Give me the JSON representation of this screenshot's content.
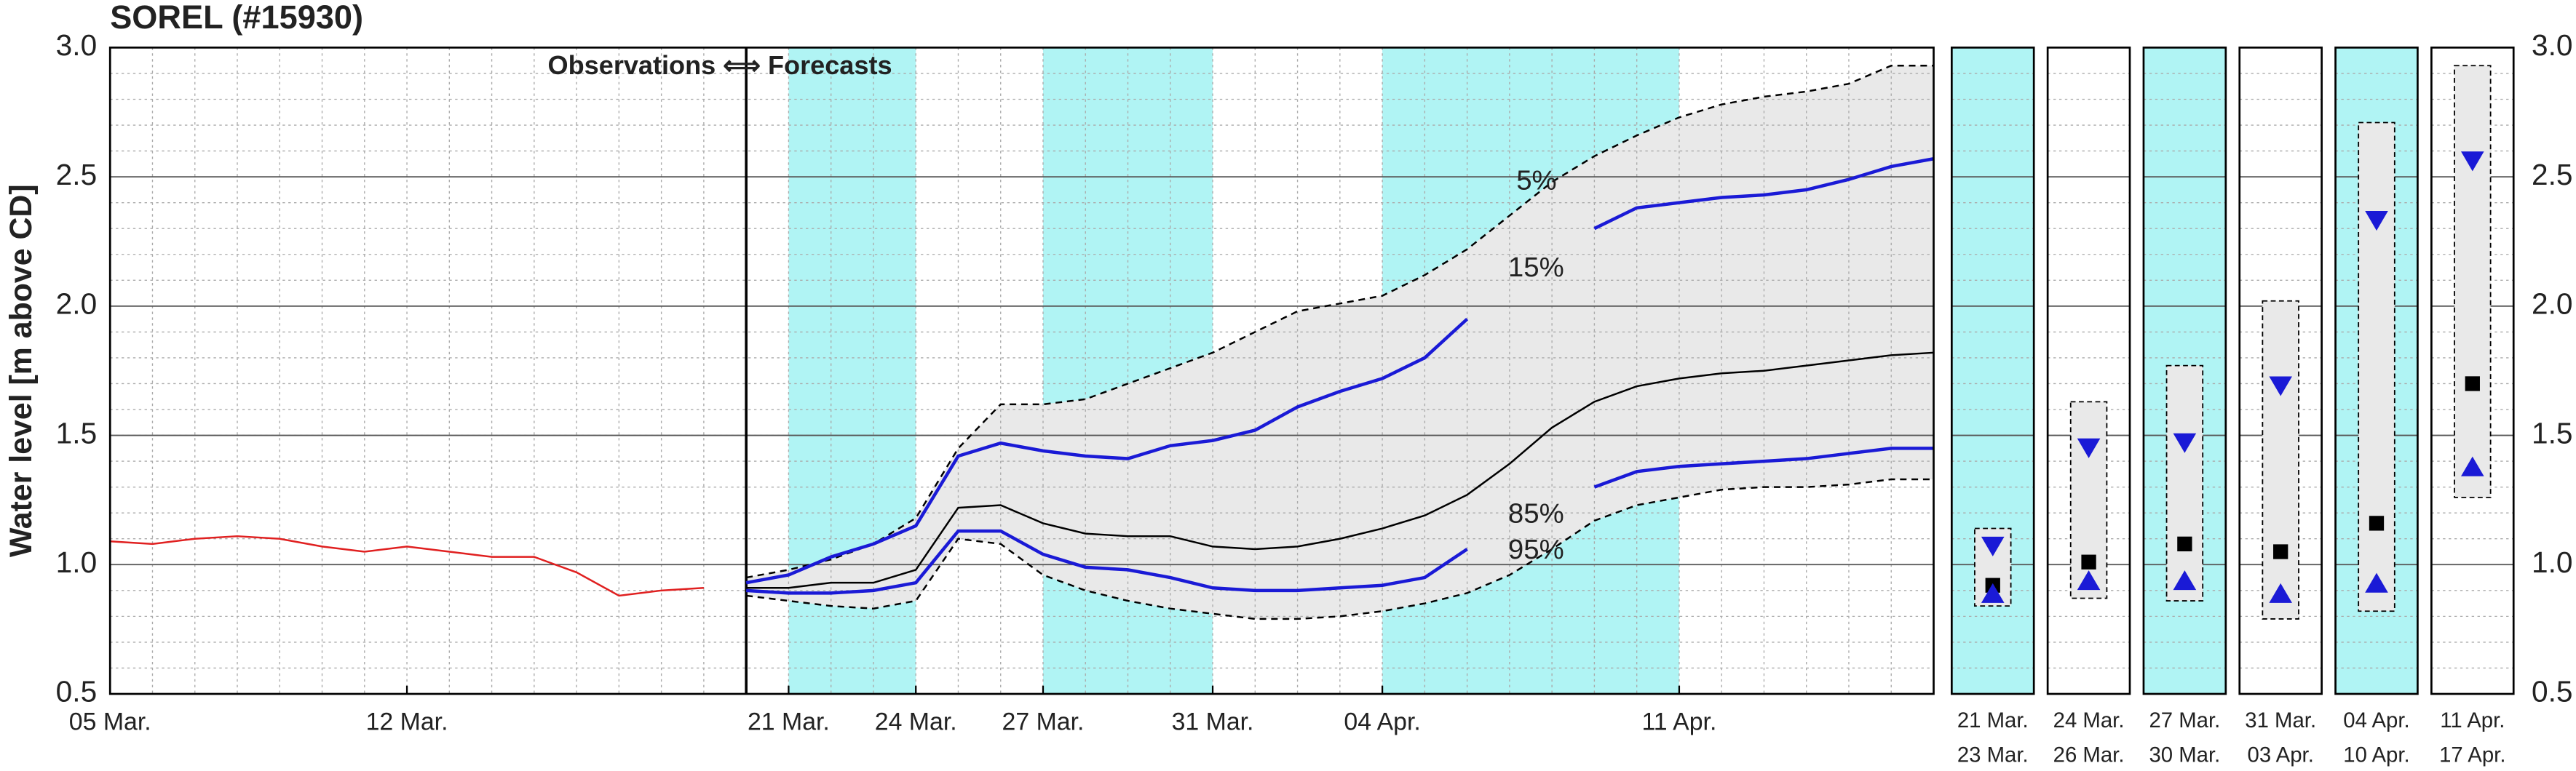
{
  "chart_data": [
    {
      "type": "line",
      "title": "SOREL (#15930)",
      "ylabel": "Water level [m above CD]",
      "annotation": "Observations ⟺ Forecasts",
      "xlim": [
        0,
        43
      ],
      "xticks": [
        {
          "value": 0,
          "label": "05 Mar."
        },
        {
          "value": 7,
          "label": "12 Mar."
        },
        {
          "value": 16,
          "label": "21 Mar."
        },
        {
          "value": 19,
          "label": "24 Mar."
        },
        {
          "value": 22,
          "label": "27 Mar."
        },
        {
          "value": 26,
          "label": "31 Mar."
        },
        {
          "value": 30,
          "label": "04 Apr."
        },
        {
          "value": 37,
          "label": "11 Apr."
        }
      ],
      "ylim": [
        0.5,
        3.0
      ],
      "yticks": [
        0.5,
        {
          "value": 1,
          "label": "1.0"
        },
        1.5,
        {
          "value": 2,
          "label": "2.0"
        },
        2.5,
        {
          "value": 3,
          "label": "3.0"
        }
      ],
      "grid": true,
      "divider": 15,
      "shaded": [
        [
          16,
          19
        ],
        [
          22,
          26
        ],
        [
          30,
          37
        ]
      ],
      "shade_color": "#b0f4f4",
      "band_color": "#e9e9e9",
      "series": [
        {
          "color": "#e02020",
          "x": [
            0,
            1,
            2,
            3,
            4,
            5,
            6,
            7,
            8,
            9,
            10,
            11,
            12,
            13,
            14
          ],
          "values": [
            1.09,
            1.08,
            1.1,
            1.11,
            1.1,
            1.07,
            1.05,
            1.07,
            1.05,
            1.03,
            1.03,
            0.97,
            0.88,
            0.9,
            0.91
          ]
        },
        {
          "name": "5%",
          "color": "#000000",
          "dashed": true,
          "x": [
            15,
            16,
            17,
            18,
            19,
            20,
            21,
            22,
            23,
            24,
            25,
            26,
            27,
            28,
            29,
            30,
            31,
            32,
            33,
            34,
            35,
            36,
            37,
            38,
            39,
            40,
            41,
            42,
            43
          ],
          "values": [
            0.95,
            0.98,
            1.02,
            1.08,
            1.18,
            1.45,
            1.62,
            1.62,
            1.64,
            1.7,
            1.76,
            1.82,
            1.9,
            1.98,
            2.01,
            2.04,
            2.12,
            2.22,
            2.35,
            2.48,
            2.58,
            2.66,
            2.73,
            2.78,
            2.81,
            2.83,
            2.86,
            2.93,
            2.93
          ]
        },
        {
          "name": "15%",
          "color": "#1a1ad6",
          "x": [
            15,
            16,
            17,
            18,
            19,
            20,
            21,
            22,
            23,
            24,
            25,
            26,
            27,
            28,
            29,
            30,
            31,
            32,
            33,
            34,
            35,
            36,
            37,
            38,
            39,
            40,
            41,
            42,
            43
          ],
          "values": [
            0.93,
            0.96,
            1.03,
            1.08,
            1.15,
            1.42,
            1.47,
            1.44,
            1.42,
            1.41,
            1.46,
            1.48,
            1.52,
            1.61,
            1.67,
            1.72,
            1.8,
            1.95,
            null,
            null,
            2.3,
            2.38,
            2.4,
            2.42,
            2.43,
            2.45,
            2.49,
            2.54,
            2.57
          ]
        },
        {
          "color": "#000000",
          "x": [
            15,
            16,
            17,
            18,
            19,
            20,
            21,
            22,
            23,
            24,
            25,
            26,
            27,
            28,
            29,
            30,
            31,
            32,
            33,
            34,
            35,
            36,
            37,
            38,
            39,
            40,
            41,
            42,
            43
          ],
          "values": [
            0.91,
            0.91,
            0.93,
            0.93,
            0.98,
            1.22,
            1.23,
            1.16,
            1.12,
            1.11,
            1.11,
            1.07,
            1.06,
            1.07,
            1.1,
            1.14,
            1.19,
            1.27,
            1.39,
            1.53,
            1.63,
            1.69,
            1.72,
            1.74,
            1.75,
            1.77,
            1.79,
            1.81,
            1.82
          ]
        },
        {
          "name": "85%",
          "color": "#1a1ad6",
          "x": [
            15,
            16,
            17,
            18,
            19,
            20,
            21,
            22,
            23,
            24,
            25,
            26,
            27,
            28,
            29,
            30,
            31,
            32,
            33,
            34,
            35,
            36,
            37,
            38,
            39,
            40,
            41,
            42,
            43
          ],
          "values": [
            0.9,
            0.89,
            0.89,
            0.9,
            0.93,
            1.13,
            1.13,
            1.04,
            0.99,
            0.98,
            0.95,
            0.91,
            0.9,
            0.9,
            0.91,
            0.92,
            0.95,
            1.06,
            null,
            null,
            1.3,
            1.36,
            1.38,
            1.39,
            1.4,
            1.41,
            1.43,
            1.45,
            1.45
          ]
        },
        {
          "name": "95%",
          "color": "#000000",
          "dashed": true,
          "x": [
            15,
            16,
            17,
            18,
            19,
            20,
            21,
            22,
            23,
            24,
            25,
            26,
            27,
            28,
            29,
            30,
            31,
            32,
            33,
            34,
            35,
            36,
            37,
            38,
            39,
            40,
            41,
            42,
            43
          ],
          "values": [
            0.88,
            0.86,
            0.84,
            0.83,
            0.86,
            1.1,
            1.08,
            0.96,
            0.9,
            0.86,
            0.83,
            0.81,
            0.79,
            0.79,
            0.8,
            0.82,
            0.85,
            0.89,
            0.96,
            1.06,
            1.17,
            1.23,
            1.26,
            1.29,
            1.3,
            1.3,
            1.31,
            1.33,
            1.33
          ]
        }
      ]
    },
    {
      "type": "range",
      "categories": [
        [
          "21 Mar.",
          "23 Mar."
        ],
        [
          "24 Mar.",
          "26 Mar."
        ],
        [
          "27 Mar.",
          "30 Mar."
        ],
        [
          "31 Mar.",
          "03 Apr."
        ],
        [
          "04 Apr.",
          "10 Apr."
        ],
        [
          "11 Apr.",
          "17 Apr."
        ]
      ],
      "shaded": [
        true,
        false,
        true,
        false,
        true,
        false
      ],
      "shade_color": "#b0f4f4",
      "box_color": "#e9e9e9",
      "ylim": [
        0.5,
        3.0
      ],
      "yticks": [
        0.5,
        {
          "value": 1,
          "label": "1.0"
        },
        1.5,
        {
          "value": 2,
          "label": "2.0"
        },
        2.5,
        {
          "value": 3,
          "label": "3.0"
        }
      ],
      "low": [
        0.84,
        0.87,
        0.86,
        0.79,
        0.82,
        1.26
      ],
      "high": [
        1.14,
        1.63,
        1.77,
        2.02,
        2.71,
        2.93
      ],
      "series": [
        {
          "marker": "down",
          "color": "#1a1ad6",
          "values": [
            1.07,
            1.45,
            1.47,
            1.69,
            2.33,
            2.56
          ]
        },
        {
          "marker": "square",
          "color": "#000000",
          "values": [
            0.92,
            1.01,
            1.08,
            1.05,
            1.16,
            1.7
          ]
        },
        {
          "marker": "up",
          "color": "#1a1ad6",
          "values": [
            0.89,
            0.94,
            0.94,
            0.89,
            0.93,
            1.38
          ]
        }
      ]
    }
  ]
}
